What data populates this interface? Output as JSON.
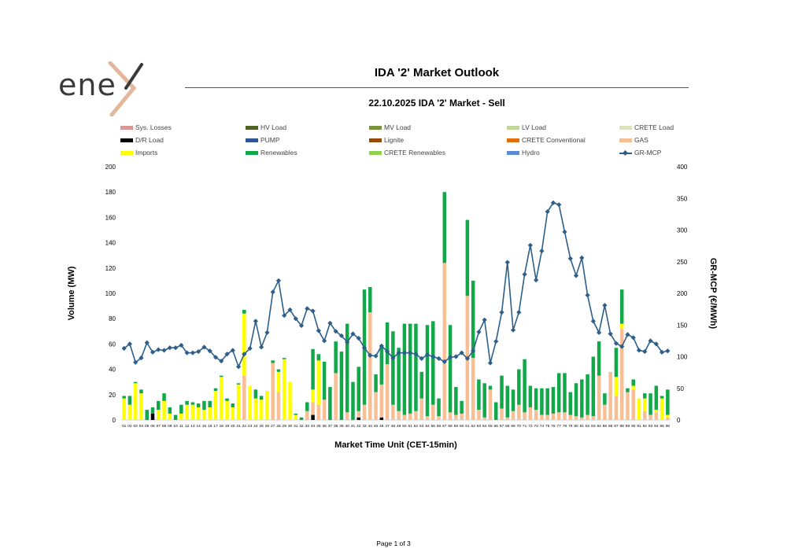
{
  "logo": {
    "text": "ene"
  },
  "header": {
    "title": "IDA '2' Market Outlook",
    "subtitle": "22.10.2025  IDA '2' Market - Sell"
  },
  "footer": {
    "page": "Page 1 of 3"
  },
  "colors": {
    "sys_losses": "#d99694",
    "hv_load": "#4f6228",
    "mv_load": "#77933c",
    "lv_load": "#c3d69b",
    "crete_load": "#d7e4bd",
    "dr_load": "#000000",
    "pump": "#2f5597",
    "lignite": "#984807",
    "crete_conv": "#e46c0a",
    "gas": "#f8bf94",
    "imports": "#ffff00",
    "renewables": "#12a84a",
    "crete_ren": "#92d050",
    "hydro": "#5b8bd1",
    "mcp": "#2e5f8a"
  },
  "chart_data": {
    "type": "bar",
    "title": "22.10.2025  IDA '2' Market - Sell",
    "xlabel": "Market Time Unit (CET-15min)",
    "ylabel": "Volume (MW)",
    "y2label": "GR-MCP (€/MWh)",
    "ylim": [
      0,
      200
    ],
    "y2lim": [
      0,
      400
    ],
    "yticks": [
      "0",
      "20",
      "40",
      "60",
      "80",
      "100",
      "120",
      "140",
      "160",
      "180",
      "200"
    ],
    "y2ticks": [
      "0",
      "50",
      "100",
      "150",
      "200",
      "250",
      "300",
      "350",
      "400"
    ],
    "categories": [
      "01",
      "02",
      "03",
      "04",
      "05",
      "06",
      "07",
      "08",
      "09",
      "10",
      "11",
      "12",
      "13",
      "14",
      "15",
      "16",
      "17",
      "18",
      "19",
      "20",
      "21",
      "22",
      "23",
      "24",
      "25",
      "26",
      "27",
      "28",
      "29",
      "30",
      "31",
      "32",
      "33",
      "34",
      "35",
      "36",
      "37",
      "38",
      "39",
      "40",
      "41",
      "42",
      "43",
      "44",
      "45",
      "46",
      "47",
      "48",
      "49",
      "50",
      "51",
      "52",
      "53",
      "54",
      "55",
      "56",
      "57",
      "58",
      "59",
      "60",
      "61",
      "62",
      "63",
      "64",
      "65",
      "66",
      "67",
      "68",
      "69",
      "70",
      "71",
      "72",
      "73",
      "74",
      "75",
      "76",
      "77",
      "78",
      "79",
      "80",
      "81",
      "82",
      "83",
      "84",
      "85",
      "86",
      "87",
      "88",
      "89",
      "90",
      "91",
      "92",
      "93",
      "94",
      "95",
      "96"
    ],
    "legend": [
      {
        "key": "sys_losses",
        "label": "Sys. Losses",
        "kind": "bar"
      },
      {
        "key": "hv_load",
        "label": "HV Load",
        "kind": "bar"
      },
      {
        "key": "mv_load",
        "label": "MV Load",
        "kind": "bar"
      },
      {
        "key": "lv_load",
        "label": "LV Load",
        "kind": "bar"
      },
      {
        "key": "crete_load",
        "label": "CRETE Load",
        "kind": "bar"
      },
      {
        "key": "dr_load",
        "label": "D/R Load",
        "kind": "bar"
      },
      {
        "key": "pump",
        "label": "PUMP",
        "kind": "bar"
      },
      {
        "key": "lignite",
        "label": "Lignite",
        "kind": "bar"
      },
      {
        "key": "crete_conv",
        "label": "CRETE Conventional",
        "kind": "bar"
      },
      {
        "key": "gas",
        "label": "GAS",
        "kind": "bar"
      },
      {
        "key": "imports",
        "label": "Imports",
        "kind": "bar"
      },
      {
        "key": "renewables",
        "label": "Renewables",
        "kind": "bar"
      },
      {
        "key": "crete_ren",
        "label": "CRETE Renewables",
        "kind": "bar"
      },
      {
        "key": "hydro",
        "label": "Hydro",
        "kind": "bar"
      },
      {
        "key": "mcp",
        "label": "GR-MCP",
        "kind": "line"
      }
    ],
    "series": [
      {
        "name": "Sys. Losses",
        "key": "sys_losses",
        "values": [
          0,
          0,
          0,
          0,
          0,
          0,
          0,
          0,
          0,
          0,
          0,
          0,
          0,
          0,
          0,
          0,
          0,
          0,
          0,
          0,
          0,
          0,
          0,
          0,
          0,
          0,
          0,
          0,
          0,
          0,
          0,
          0,
          0,
          0,
          0,
          0,
          0,
          0,
          0,
          0,
          0,
          0,
          0,
          0,
          0,
          0,
          0,
          0,
          0,
          0,
          0,
          0,
          0,
          0,
          0,
          0,
          0,
          0,
          0,
          0,
          0,
          0,
          0,
          0,
          0,
          0,
          0,
          0,
          0,
          0,
          0,
          0,
          0,
          0,
          0,
          0,
          0,
          0,
          0,
          0,
          0,
          0,
          0,
          0,
          0,
          0,
          0,
          0,
          0,
          0,
          0,
          0,
          0,
          0,
          0,
          0
        ]
      },
      {
        "name": "D/R Load",
        "key": "dr_load",
        "values": [
          0,
          0,
          0,
          0,
          0,
          5,
          0,
          0,
          0,
          0,
          0,
          0,
          0,
          0,
          0,
          0,
          0,
          0,
          0,
          0,
          0,
          0,
          0,
          0,
          0,
          0,
          0,
          0,
          0,
          0,
          0,
          0,
          0,
          4,
          0,
          0,
          0,
          0,
          0,
          0,
          0,
          2,
          0,
          0,
          0,
          2,
          0,
          0,
          0,
          0,
          0,
          0,
          0,
          0,
          0,
          0,
          0,
          0,
          0,
          0,
          0,
          0,
          0,
          0,
          0,
          0,
          0,
          0,
          0,
          0,
          0,
          0,
          0,
          0,
          0,
          0,
          0,
          0,
          0,
          0,
          0,
          0,
          0,
          0,
          0,
          0,
          0,
          0,
          0,
          0,
          0,
          0,
          0,
          0,
          0,
          0
        ]
      },
      {
        "name": "PUMP",
        "key": "pump",
        "values": [
          0,
          0,
          0,
          0,
          0,
          0,
          0,
          0,
          0,
          0,
          0,
          0,
          0,
          0,
          0,
          0,
          0,
          0,
          0,
          0,
          0,
          0,
          0,
          0,
          0,
          0,
          0,
          0,
          0,
          0,
          0,
          0,
          0,
          0,
          0,
          0,
          0,
          0,
          0,
          0,
          0,
          0,
          0,
          0,
          0,
          0,
          0,
          0,
          0,
          0,
          0,
          0,
          0,
          0,
          0,
          0,
          0,
          0,
          0,
          0,
          0,
          0,
          0,
          0,
          0,
          0,
          0,
          0,
          0,
          0,
          0,
          0,
          0,
          0,
          0,
          0,
          0,
          0,
          0,
          0,
          0,
          0,
          0,
          0,
          0,
          0,
          0,
          0,
          0,
          0,
          0,
          0,
          0,
          0,
          0,
          0
        ]
      },
      {
        "name": "GAS",
        "key": "gas",
        "values": [
          0,
          0,
          0,
          0,
          0,
          0,
          0,
          0,
          0,
          0,
          0,
          0,
          0,
          0,
          0,
          0,
          0,
          0,
          0,
          0,
          0,
          35,
          0,
          0,
          0,
          0,
          45,
          22,
          0,
          0,
          0,
          0,
          7,
          10,
          12,
          16,
          0,
          37,
          0,
          6,
          0,
          5,
          12,
          85,
          22,
          26,
          44,
          12,
          7,
          4,
          5,
          7,
          17,
          3,
          12,
          3,
          124,
          6,
          4,
          5,
          98,
          49,
          8,
          2,
          24,
          0,
          9,
          2,
          7,
          12,
          6,
          10,
          8,
          4,
          4,
          5,
          6,
          6,
          4,
          3,
          2,
          4,
          3,
          35,
          12,
          38,
          19,
          72,
          22,
          24,
          0,
          7,
          4,
          6,
          0,
          2
        ]
      },
      {
        "name": "Imports",
        "key": "imports",
        "values": [
          17,
          12,
          29,
          21,
          0,
          0,
          8,
          15,
          5,
          0,
          5,
          12,
          12,
          10,
          8,
          10,
          23,
          34,
          15,
          10,
          28,
          49,
          27,
          17,
          16,
          23,
          0,
          16,
          48,
          30,
          4,
          0,
          0,
          10,
          35,
          0,
          0,
          0,
          0,
          0,
          0,
          0,
          0,
          0,
          0,
          0,
          0,
          0,
          0,
          0,
          0,
          0,
          0,
          0,
          0,
          0,
          0,
          0,
          0,
          0,
          0,
          0,
          0,
          0,
          0,
          0,
          0,
          0,
          0,
          0,
          0,
          0,
          0,
          0,
          0,
          0,
          0,
          0,
          0,
          0,
          0,
          0,
          0,
          0,
          0,
          0,
          15,
          4,
          0,
          3,
          17,
          10,
          0,
          2,
          17,
          2
        ]
      },
      {
        "name": "Renewables",
        "key": "renewables",
        "values": [
          2,
          7,
          1,
          3,
          8,
          5,
          7,
          6,
          5,
          4,
          7,
          3,
          2,
          3,
          7,
          5,
          2,
          1,
          2,
          3,
          1,
          3,
          0,
          7,
          3,
          0,
          2,
          2,
          1,
          0,
          1,
          2,
          7,
          32,
          5,
          30,
          26,
          25,
          54,
          70,
          30,
          35,
          91,
          20,
          14,
          31,
          33,
          58,
          50,
          72,
          71,
          69,
          21,
          72,
          66,
          14,
          56,
          69,
          22,
          10,
          60,
          61,
          24,
          27,
          3,
          14,
          26,
          25,
          17,
          28,
          42,
          17,
          17,
          21,
          21,
          21,
          31,
          31,
          18,
          26,
          30,
          32,
          47,
          27,
          9,
          0,
          23,
          27,
          3,
          5,
          0,
          4,
          17,
          19,
          2,
          20
        ]
      },
      {
        "name": "Hydro",
        "key": "hydro",
        "values": [
          0,
          0,
          0,
          0,
          0,
          0,
          0,
          0,
          0,
          0,
          0,
          0,
          0,
          0,
          0,
          0,
          0,
          0,
          0,
          0,
          0,
          0,
          0,
          0,
          0,
          0,
          0,
          0,
          0,
          0,
          0,
          0,
          0,
          0,
          0,
          0,
          0,
          0,
          0,
          0,
          0,
          0,
          0,
          0,
          0,
          0,
          0,
          0,
          0,
          0,
          0,
          0,
          0,
          0,
          0,
          0,
          0,
          0,
          0,
          0,
          0,
          0,
          0,
          0,
          0,
          0,
          0,
          0,
          0,
          0,
          0,
          0,
          0,
          0,
          0,
          0,
          0,
          0,
          0,
          0,
          0,
          0,
          0,
          0,
          0,
          0,
          0,
          0,
          0,
          0,
          0,
          0,
          0,
          0,
          0,
          0
        ]
      }
    ],
    "mcp": {
      "name": "GR-MCP",
      "values": [
        113,
        120,
        91,
        98,
        122,
        107,
        111,
        110,
        114,
        114,
        118,
        106,
        106,
        108,
        115,
        109,
        99,
        93,
        104,
        110,
        84,
        104,
        113,
        156,
        115,
        138,
        202,
        220,
        165,
        174,
        160,
        149,
        176,
        172,
        141,
        125,
        153,
        140,
        133,
        123,
        136,
        129,
        114,
        102,
        101,
        117,
        108,
        98,
        106,
        106,
        106,
        104,
        97,
        103,
        100,
        97,
        92,
        99,
        100,
        106,
        97,
        109,
        139,
        158,
        90,
        124,
        170,
        249,
        142,
        170,
        230,
        276,
        221,
        267,
        329,
        343,
        340,
        297,
        255,
        228,
        256,
        197,
        156,
        138,
        181,
        136,
        121,
        116,
        135,
        130,
        110,
        108,
        125,
        120,
        107,
        109
      ]
    }
  }
}
